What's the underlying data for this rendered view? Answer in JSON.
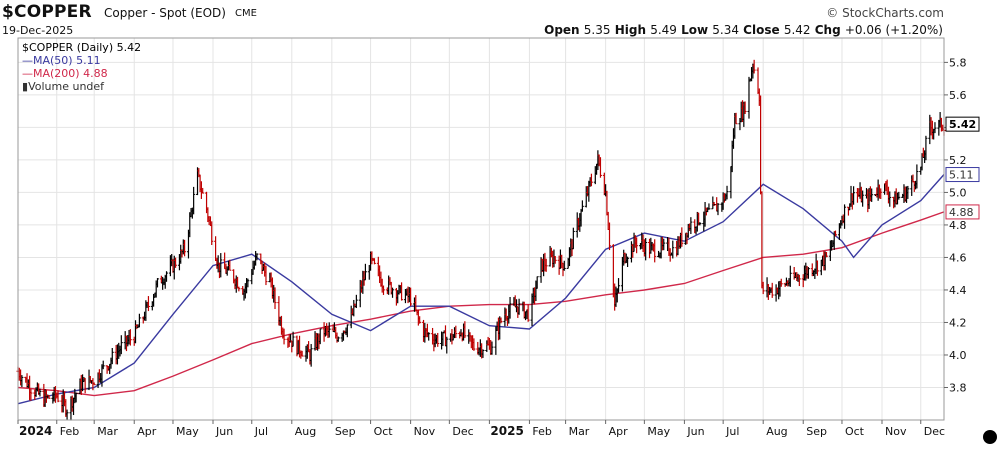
{
  "header": {
    "symbol": "$COPPER",
    "description": "Copper - Spot (EOD)",
    "exchange": "CME",
    "date": "19-Dec-2025",
    "copyright": "© StockCharts.com",
    "open_label": "Open",
    "open": "5.35",
    "high_label": "High",
    "high": "5.49",
    "low_label": "Low",
    "low": "5.34",
    "close_label": "Close",
    "close": "5.42",
    "chg_label": "Chg",
    "chg": "+0.06 (+1.20%)"
  },
  "legend": {
    "price": "$COPPER (Daily) 5.42",
    "ma50": "MA(50) 5.11",
    "ma200": "MA(200) 4.88",
    "volume": "Volume undef"
  },
  "colors": {
    "price": "#000000",
    "ma50": "#3a3aa0",
    "ma200": "#d0284a",
    "up": "#000000",
    "down": "#c00000",
    "grid": "#e4e4e4"
  },
  "chart_data": {
    "type": "line",
    "title": "$COPPER Copper - Spot (EOD) CME",
    "ylim": [
      3.6,
      5.95
    ],
    "y_ticks": [
      3.8,
      4.0,
      4.2,
      4.4,
      4.6,
      4.8,
      5.0,
      5.2,
      5.4,
      5.6,
      5.8
    ],
    "xlim": [
      "2024-01-02",
      "2025-12-19"
    ],
    "x_ticks": [
      {
        "date": "2024-01-02",
        "label": "2024",
        "year": true
      },
      {
        "date": "2024-02-01",
        "label": "Feb"
      },
      {
        "date": "2024-03-01",
        "label": "Mar"
      },
      {
        "date": "2024-04-01",
        "label": "Apr"
      },
      {
        "date": "2024-05-01",
        "label": "May"
      },
      {
        "date": "2024-06-01",
        "label": "Jun"
      },
      {
        "date": "2024-07-01",
        "label": "Jul"
      },
      {
        "date": "2024-08-01",
        "label": "Aug"
      },
      {
        "date": "2024-09-01",
        "label": "Sep"
      },
      {
        "date": "2024-10-01",
        "label": "Oct"
      },
      {
        "date": "2024-11-01",
        "label": "Nov"
      },
      {
        "date": "2024-12-01",
        "label": "Dec"
      },
      {
        "date": "2025-01-01",
        "label": "2025",
        "year": true
      },
      {
        "date": "2025-02-01",
        "label": "Feb"
      },
      {
        "date": "2025-03-01",
        "label": "Mar"
      },
      {
        "date": "2025-04-01",
        "label": "Apr"
      },
      {
        "date": "2025-05-01",
        "label": "May"
      },
      {
        "date": "2025-06-01",
        "label": "Jun"
      },
      {
        "date": "2025-07-01",
        "label": "Jul"
      },
      {
        "date": "2025-08-01",
        "label": "Aug"
      },
      {
        "date": "2025-09-01",
        "label": "Sep"
      },
      {
        "date": "2025-10-01",
        "label": "Oct"
      },
      {
        "date": "2025-11-01",
        "label": "Nov"
      },
      {
        "date": "2025-12-01",
        "label": "Dec"
      }
    ],
    "price_points": [
      [
        "2024-01-02",
        3.9
      ],
      [
        "2024-01-12",
        3.8
      ],
      [
        "2024-01-22",
        3.73
      ],
      [
        "2024-02-01",
        3.75
      ],
      [
        "2024-02-09",
        3.67
      ],
      [
        "2024-02-20",
        3.82
      ],
      [
        "2024-03-01",
        3.85
      ],
      [
        "2024-03-12",
        3.95
      ],
      [
        "2024-03-22",
        4.05
      ],
      [
        "2024-04-01",
        4.12
      ],
      [
        "2024-04-10",
        4.27
      ],
      [
        "2024-04-20",
        4.45
      ],
      [
        "2024-05-01",
        4.55
      ],
      [
        "2024-05-10",
        4.65
      ],
      [
        "2024-05-20",
        5.1
      ],
      [
        "2024-05-27",
        4.9
      ],
      [
        "2024-06-05",
        4.55
      ],
      [
        "2024-06-15",
        4.5
      ],
      [
        "2024-06-25",
        4.4
      ],
      [
        "2024-07-05",
        4.6
      ],
      [
        "2024-07-15",
        4.45
      ],
      [
        "2024-07-25",
        4.15
      ],
      [
        "2024-08-05",
        4.05
      ],
      [
        "2024-08-15",
        4.0
      ],
      [
        "2024-08-25",
        4.15
      ],
      [
        "2024-09-05",
        4.12
      ],
      [
        "2024-09-15",
        4.2
      ],
      [
        "2024-09-25",
        4.45
      ],
      [
        "2024-10-01",
        4.58
      ],
      [
        "2024-10-10",
        4.45
      ],
      [
        "2024-10-20",
        4.4
      ],
      [
        "2024-11-01",
        4.35
      ],
      [
        "2024-11-10",
        4.15
      ],
      [
        "2024-11-20",
        4.1
      ],
      [
        "2024-12-01",
        4.1
      ],
      [
        "2024-12-10",
        4.15
      ],
      [
        "2024-12-20",
        4.05
      ],
      [
        "2025-01-02",
        4.05
      ],
      [
        "2025-01-12",
        4.25
      ],
      [
        "2025-01-22",
        4.3
      ],
      [
        "2025-02-01",
        4.25
      ],
      [
        "2025-02-10",
        4.55
      ],
      [
        "2025-02-20",
        4.6
      ],
      [
        "2025-03-01",
        4.55
      ],
      [
        "2025-03-10",
        4.8
      ],
      [
        "2025-03-20",
        5.05
      ],
      [
        "2025-03-26",
        5.2
      ],
      [
        "2025-04-01",
        5.0
      ],
      [
        "2025-04-08",
        4.3
      ],
      [
        "2025-04-15",
        4.6
      ],
      [
        "2025-04-25",
        4.7
      ],
      [
        "2025-05-05",
        4.65
      ],
      [
        "2025-05-15",
        4.65
      ],
      [
        "2025-05-25",
        4.65
      ],
      [
        "2025-06-05",
        4.8
      ],
      [
        "2025-06-15",
        4.85
      ],
      [
        "2025-06-25",
        4.9
      ],
      [
        "2025-07-05",
        5.0
      ],
      [
        "2025-07-10",
        5.45
      ],
      [
        "2025-07-17",
        5.5
      ],
      [
        "2025-07-24",
        5.8
      ],
      [
        "2025-07-29",
        5.6
      ],
      [
        "2025-07-31",
        4.4
      ],
      [
        "2025-08-10",
        4.4
      ],
      [
        "2025-08-20",
        4.45
      ],
      [
        "2025-09-01",
        4.5
      ],
      [
        "2025-09-10",
        4.55
      ],
      [
        "2025-09-20",
        4.6
      ],
      [
        "2025-10-01",
        4.85
      ],
      [
        "2025-10-10",
        5.0
      ],
      [
        "2025-10-20",
        4.95
      ],
      [
        "2025-11-01",
        5.05
      ],
      [
        "2025-11-10",
        4.95
      ],
      [
        "2025-11-20",
        5.0
      ],
      [
        "2025-12-01",
        5.15
      ],
      [
        "2025-12-08",
        5.4
      ],
      [
        "2025-12-19",
        5.42
      ]
    ],
    "series": [
      {
        "name": "MA(50)",
        "points": [
          [
            "2024-01-02",
            3.7
          ],
          [
            "2024-02-01",
            3.76
          ],
          [
            "2024-03-01",
            3.8
          ],
          [
            "2024-04-01",
            3.95
          ],
          [
            "2024-05-01",
            4.25
          ],
          [
            "2024-06-01",
            4.55
          ],
          [
            "2024-07-01",
            4.62
          ],
          [
            "2024-08-01",
            4.45
          ],
          [
            "2024-09-01",
            4.25
          ],
          [
            "2024-10-01",
            4.15
          ],
          [
            "2024-11-01",
            4.3
          ],
          [
            "2024-12-01",
            4.3
          ],
          [
            "2025-01-01",
            4.18
          ],
          [
            "2025-02-01",
            4.16
          ],
          [
            "2025-03-01",
            4.35
          ],
          [
            "2025-04-01",
            4.65
          ],
          [
            "2025-05-01",
            4.75
          ],
          [
            "2025-06-01",
            4.7
          ],
          [
            "2025-07-01",
            4.82
          ],
          [
            "2025-08-01",
            5.05
          ],
          [
            "2025-09-01",
            4.9
          ],
          [
            "2025-10-01",
            4.7
          ],
          [
            "2025-10-10",
            4.6
          ],
          [
            "2025-11-01",
            4.8
          ],
          [
            "2025-12-01",
            4.95
          ],
          [
            "2025-12-19",
            5.11
          ]
        ]
      },
      {
        "name": "MA(200)",
        "points": [
          [
            "2024-01-02",
            3.8
          ],
          [
            "2024-02-01",
            3.78
          ],
          [
            "2024-03-01",
            3.75
          ],
          [
            "2024-04-01",
            3.78
          ],
          [
            "2024-05-01",
            3.87
          ],
          [
            "2024-06-01",
            3.97
          ],
          [
            "2024-07-01",
            4.07
          ],
          [
            "2024-08-01",
            4.13
          ],
          [
            "2024-09-01",
            4.18
          ],
          [
            "2024-10-01",
            4.22
          ],
          [
            "2024-11-01",
            4.27
          ],
          [
            "2024-12-01",
            4.3
          ],
          [
            "2025-01-01",
            4.31
          ],
          [
            "2025-02-01",
            4.31
          ],
          [
            "2025-03-01",
            4.33
          ],
          [
            "2025-04-01",
            4.37
          ],
          [
            "2025-05-01",
            4.4
          ],
          [
            "2025-06-01",
            4.44
          ],
          [
            "2025-07-01",
            4.52
          ],
          [
            "2025-08-01",
            4.6
          ],
          [
            "2025-09-01",
            4.62
          ],
          [
            "2025-10-01",
            4.66
          ],
          [
            "2025-11-01",
            4.75
          ],
          [
            "2025-12-01",
            4.83
          ],
          [
            "2025-12-19",
            4.88
          ]
        ]
      }
    ],
    "last_values": {
      "price": "5.42",
      "ma50": "5.11",
      "ma200": "4.88"
    }
  }
}
